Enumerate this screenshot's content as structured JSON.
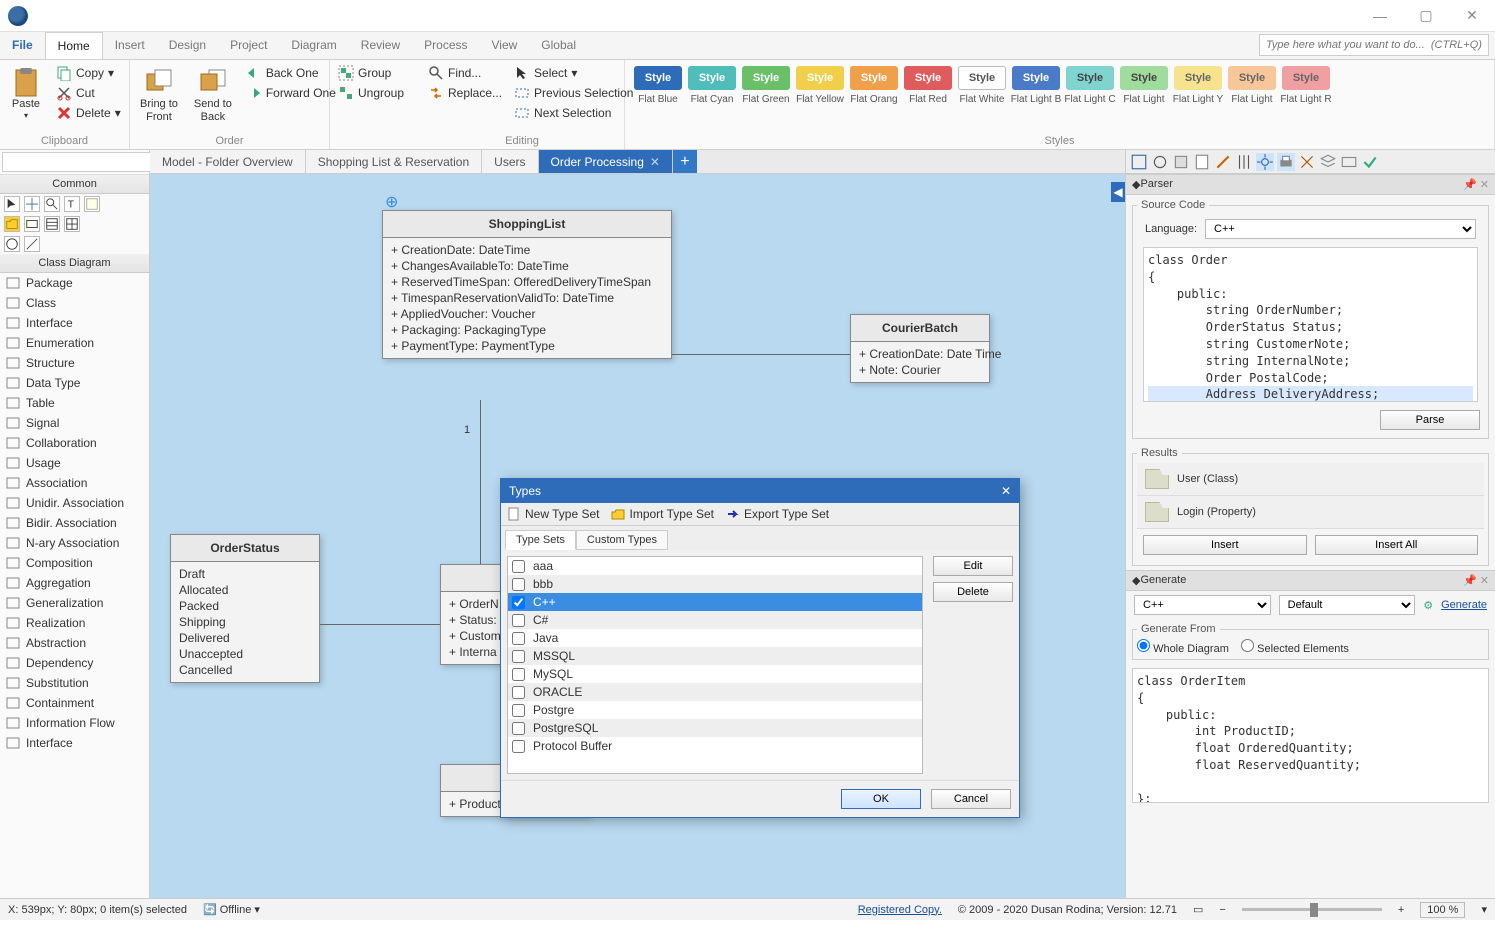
{
  "titlebar": {
    "min": "—",
    "max": "▢",
    "close": "✕"
  },
  "menu": {
    "file": "File",
    "home": "Home",
    "insert": "Insert",
    "design": "Design",
    "project": "Project",
    "diagram": "Diagram",
    "review": "Review",
    "process": "Process",
    "view": "View",
    "global": "Global",
    "search_placeholder": "Type here what you want to do...  (CTRL+Q)"
  },
  "ribbon": {
    "clipboard": {
      "paste": "Paste",
      "copy": "Copy",
      "cut": "Cut",
      "delete": "Delete",
      "label": "Clipboard"
    },
    "pos": {
      "bring": "Bring to\nFront",
      "send": "Send to\nBack"
    },
    "order": {
      "back_one": "Back One",
      "forward_one": "Forward One",
      "group": "Group",
      "ungroup": "Ungroup",
      "label": "Order"
    },
    "editing": {
      "find": "Find...",
      "replace": "Replace...",
      "select": "Select",
      "prev": "Previous Selection",
      "next": "Next Selection",
      "label": "Editing"
    },
    "styles_label": "Styles",
    "styles": [
      {
        "name": "Flat Blue",
        "bg": "#2e6bb8",
        "fg": "#fff",
        "bd": "#2e6bb8"
      },
      {
        "name": "Flat Cyan",
        "bg": "#4fbdba",
        "fg": "#fff",
        "bd": "#4fbdba"
      },
      {
        "name": "Flat Green",
        "bg": "#6abf69",
        "fg": "#fff",
        "bd": "#6abf69"
      },
      {
        "name": "Flat Yellow",
        "bg": "#f2cf4a",
        "fg": "#fff",
        "bd": "#f2cf4a"
      },
      {
        "name": "Flat Orang",
        "bg": "#f0a04b",
        "fg": "#fff",
        "bd": "#f0a04b"
      },
      {
        "name": "Flat Red",
        "bg": "#e05b5b",
        "fg": "#fff",
        "bd": "#e05b5b"
      },
      {
        "name": "Flat White",
        "bg": "#ffffff",
        "fg": "#555",
        "bd": "#bbb"
      },
      {
        "name": "Flat Light B",
        "bg": "#4a7bc8",
        "fg": "#fff",
        "bd": "#4a7bc8"
      },
      {
        "name": "Flat Light C",
        "bg": "#7fd4d0",
        "fg": "#444",
        "bd": "#7fd4d0"
      },
      {
        "name": "Flat Light",
        "bg": "#9fdc9e",
        "fg": "#444",
        "bd": "#9fdc9e"
      },
      {
        "name": "Flat Light Y",
        "bg": "#f7e28d",
        "fg": "#666",
        "bd": "#f7e28d"
      },
      {
        "name": "Flat Light",
        "bg": "#f7c79a",
        "fg": "#666",
        "bd": "#f7c79a"
      },
      {
        "name": "Flat Light R",
        "bg": "#f0a0a0",
        "fg": "#666",
        "bd": "#f0a0a0"
      }
    ],
    "style_word": "Style"
  },
  "sidebar": {
    "common": "Common",
    "class_diagram": "Class Diagram",
    "items": [
      "Package",
      "Class",
      "Interface",
      "Enumeration",
      "Structure",
      "Data Type",
      "Table",
      "Signal",
      "Collaboration",
      "Usage",
      "Association",
      "Unidir. Association",
      "Bidir. Association",
      "N-ary Association",
      "Composition",
      "Aggregation",
      "Generalization",
      "Realization",
      "Abstraction",
      "Dependency",
      "Substitution",
      "Containment",
      "Information Flow",
      "Interface"
    ]
  },
  "tabs": {
    "t1": "Model - Folder Overview",
    "t2": "Shopping List & Reservation",
    "t3": "Users",
    "t4": "Order Processing"
  },
  "diagram": {
    "shoppingList": {
      "title": "ShoppingList",
      "attrs": [
        "+ CreationDate: DateTime",
        "+ ChangesAvailableTo: DateTime",
        "+ ReservedTimeSpan: OfferedDeliveryTimeSpan",
        "+ TimespanReservationValidTo: DateTime",
        "+ AppliedVoucher: Voucher",
        "+ Packaging: PackagingType",
        "+ PaymentType: PaymentType"
      ]
    },
    "courierBatch": {
      "title": "CourierBatch",
      "attrs": [
        "+ CreationDate: Date Time",
        "+ Note: Courier"
      ]
    },
    "orderStatus": {
      "title": "OrderStatus",
      "vals": [
        "Draft",
        "Allocated",
        "Packed",
        "Shipping",
        "Delivered",
        "Unaccepted",
        "Cancelled"
      ]
    },
    "order": {
      "attrs": [
        "+ OrderN",
        "+ Status:",
        "+ Custom",
        "+ Interna"
      ]
    },
    "orderItemTitle": "O",
    "orderItemAttr": "+ ProductID: Integer",
    "mult1": "1"
  },
  "dialog": {
    "title": "Types",
    "new": "New Type Set",
    "import": "Import Type Set",
    "export": "Export Type Set",
    "tab1": "Type Sets",
    "tab2": "Custom Types",
    "rows": [
      "aaa",
      "bbb",
      "C++",
      "C#",
      "Java",
      "MSSQL",
      "MySQL",
      "ORACLE",
      "Postgre",
      "PostgreSQL",
      "Protocol Buffer"
    ],
    "selected": "C++",
    "edit": "Edit",
    "delete": "Delete",
    "ok": "OK",
    "cancel": "Cancel"
  },
  "parser": {
    "title": "Parser",
    "source_code": "Source Code",
    "language": "Language:",
    "lang_val": "C++",
    "code_lines": [
      "class Order",
      "{",
      "    public:",
      "        string OrderNumber;",
      "        OrderStatus Status;",
      "        string CustomerNote;",
      "        string InternalNote;",
      "        Order PostalCode;",
      "        Address DeliveryAddress;"
    ],
    "parse": "Parse",
    "results": "Results",
    "r1": "User (Class)",
    "r2": "Login (Property)",
    "insert": "Insert",
    "insert_all": "Insert All"
  },
  "generate": {
    "title": "Generate",
    "lang": "C++",
    "template": "Default",
    "btn": "Generate",
    "from_label": "Generate From",
    "whole": "Whole Diagram",
    "selected": "Selected Elements",
    "code_lines": [
      "class OrderItem",
      "{",
      "    public:",
      "        int ProductID;",
      "        float OrderedQuantity;",
      "        float ReservedQuantity;",
      "",
      "};"
    ]
  },
  "status": {
    "coords": "X: 539px; Y: 80px; 0 item(s) selected",
    "offline": "Offline",
    "registered": "Registered Copy.",
    "copyright": "© 2009 - 2020 Dusan Rodina; Version: 12.71",
    "zoom": "100 %"
  }
}
